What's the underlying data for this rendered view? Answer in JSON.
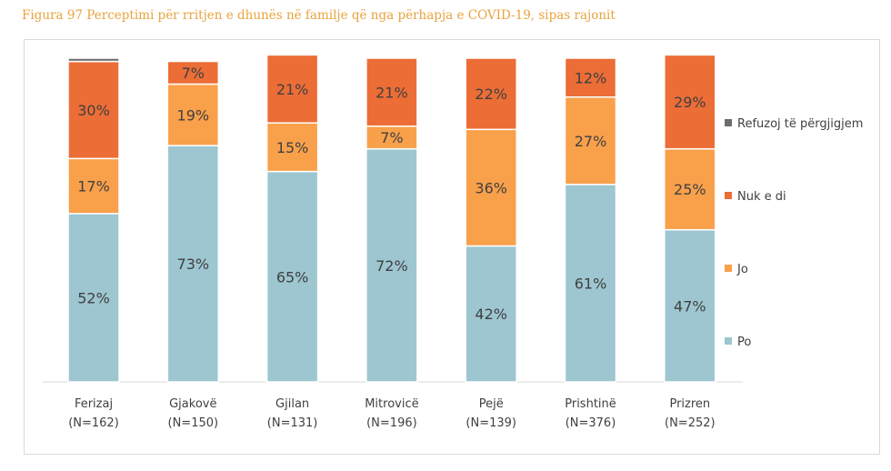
{
  "figure_title": "Figura 97 Perceptimi për rritjen e dhunës në familje që nga përhapja e COVID-19, sipas rajonit",
  "chart_data": {
    "type": "bar",
    "stacked": true,
    "percent": true,
    "title": "Figura 97 Perceptimi për rritjen e dhunës në familje që nga përhapja e COVID-19, sipas rajonit",
    "categories": [
      "Ferizaj",
      "Gjakovë",
      "Gjilan",
      "Mitrovicë",
      "Pejë",
      "Prishtinë",
      "Prizren"
    ],
    "category_n": [
      "(N=162)",
      "(N=150)",
      "(N=131)",
      "(N=196)",
      "(N=139)",
      "(N=376)",
      "(N=252)"
    ],
    "ylim": [
      0,
      100
    ],
    "legend_position": "right",
    "series": [
      {
        "name": "Po",
        "color": "#9dc6d1",
        "values": [
          52,
          73,
          65,
          72,
          42,
          61,
          47
        ],
        "labels": [
          "52%",
          "73%",
          "65%",
          "72%",
          "42%",
          "61%",
          "47%"
        ]
      },
      {
        "name": "Jo",
        "color": "#f9a04b",
        "values": [
          17,
          19,
          15,
          7,
          36,
          27,
          25
        ],
        "labels": [
          "17%",
          "19%",
          "15%",
          "7%",
          "36%",
          "27%",
          "25%"
        ]
      },
      {
        "name": "Nuk e di",
        "color": "#ec6d36",
        "values": [
          30,
          7,
          21,
          21,
          22,
          12,
          29
        ],
        "labels": [
          "30%",
          "7%",
          "21%",
          "21%",
          "22%",
          "12%",
          "29%"
        ]
      },
      {
        "name": "Refuzoj të përgjigjem",
        "color": "#6d6d6d",
        "values": [
          1,
          0,
          0,
          0,
          0,
          0,
          0
        ],
        "labels": [
          "",
          "",
          "",
          "",
          "",
          "",
          ""
        ]
      }
    ],
    "legend_order": [
      "Refuzoj të përgjigjem",
      "Nuk e di",
      "Jo",
      "Po"
    ]
  }
}
